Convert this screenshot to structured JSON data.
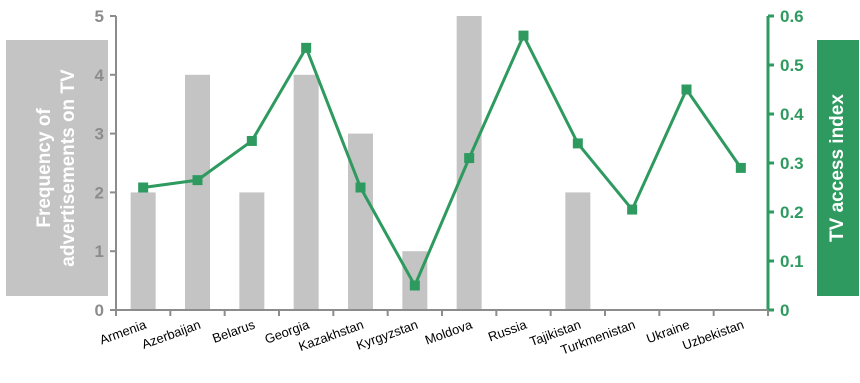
{
  "chart_data": {
    "type": "bar+line",
    "categories": [
      "Armenia",
      "Azerbaijan",
      "Belarus",
      "Georgia",
      "Kazakhstan",
      "Kyrgyzstan",
      "Moldova",
      "Russia",
      "Tajikistan",
      "Turkmenistan",
      "Ukraine",
      "Uzbekistan"
    ],
    "series": [
      {
        "type": "bar",
        "axis": "left",
        "values": [
          2,
          4,
          2,
          4,
          3,
          1,
          5,
          0,
          2,
          0,
          0,
          0
        ],
        "color": "#c4c4c4"
      },
      {
        "type": "line",
        "axis": "right",
        "values": [
          0.25,
          0.265,
          0.345,
          0.535,
          0.25,
          0.05,
          0.31,
          0.56,
          0.34,
          0.205,
          0.45,
          0.29
        ],
        "color": "#2e9a5f",
        "marker": "square"
      }
    ],
    "ylabel_left": "Frequency of advertisements on TV",
    "ylabel_right": "TV access index",
    "ylim_left": [
      0,
      5
    ],
    "yticks_left": [
      "0",
      "1",
      "2",
      "3",
      "4",
      "5"
    ],
    "ylim_right": [
      0,
      0.6
    ],
    "yticks_right": [
      "0",
      "0.1",
      "0.2",
      "0.3",
      "0.4",
      "0.5",
      "0.6"
    ],
    "grid": false,
    "left_axis_color": "#8c8c8c",
    "right_axis_color": "#2e9a5f"
  }
}
